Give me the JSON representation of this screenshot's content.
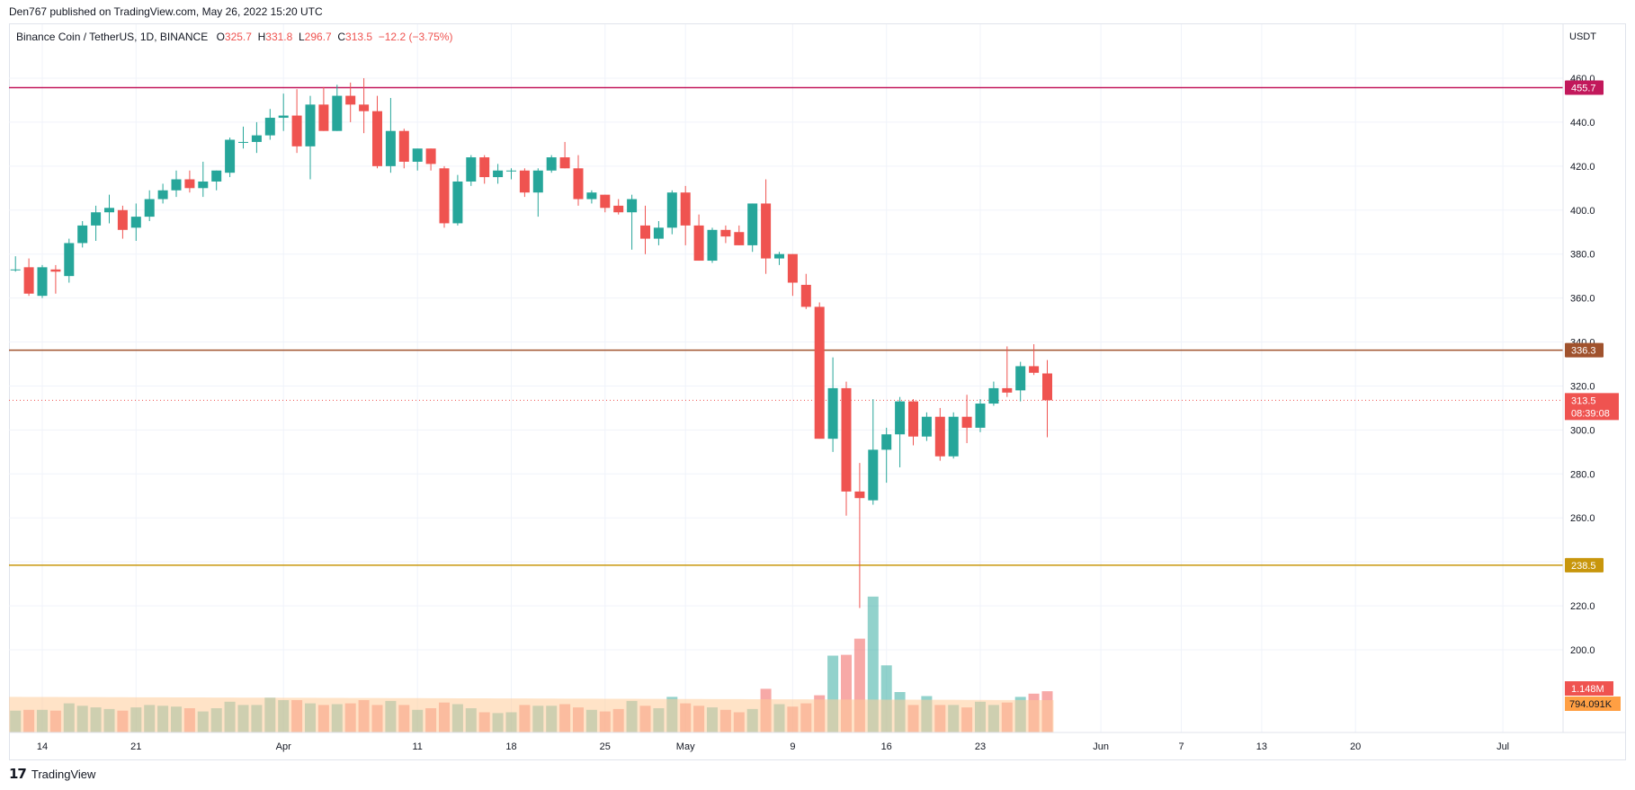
{
  "header": {
    "publisher": "Den767 published on TradingView.com, May 26, 2022 15:20 UTC"
  },
  "legend": {
    "symbol": "Binance Coin / TetherUS, 1D, BINANCE",
    "o_label": "O",
    "o_value": "325.7",
    "h_label": "H",
    "h_value": "331.8",
    "l_label": "L",
    "l_value": "296.7",
    "c_label": "C",
    "c_value": "313.5",
    "change": "−12.2 (−3.75%)"
  },
  "footer": {
    "brand": "TradingView"
  },
  "colors": {
    "up": "#26a69a",
    "down": "#ef5350",
    "resistance_high": "#c2185b",
    "resistance_mid": "#a0522d",
    "support": "#c8960c",
    "volume_ma": "#ffcc99"
  },
  "chart_data": {
    "type": "candlestick",
    "currency_label": "USDT",
    "ylim": [
      180,
      470
    ],
    "y_ticks": [
      200,
      220,
      240,
      260,
      280,
      300,
      320,
      340,
      360,
      380,
      400,
      420,
      440,
      460
    ],
    "y_tick_labels": [
      "200.0",
      "220.0",
      "240.0",
      "260.0",
      "280.0",
      "300.0",
      "320.0",
      "340.0",
      "360.0",
      "380.0",
      "400.0",
      "420.0",
      "440.0",
      "460.0"
    ],
    "x_tick_labels": [
      {
        "label": "14",
        "day": 0
      },
      {
        "label": "21",
        "day": 7
      },
      {
        "label": "Apr",
        "day": 18
      },
      {
        "label": "11",
        "day": 28
      },
      {
        "label": "18",
        "day": 35
      },
      {
        "label": "25",
        "day": 42
      },
      {
        "label": "May",
        "day": 48
      },
      {
        "label": "9",
        "day": 56
      },
      {
        "label": "16",
        "day": 63
      },
      {
        "label": "23",
        "day": 70
      },
      {
        "label": "Jun",
        "day": 79
      },
      {
        "label": "7",
        "day": 85
      },
      {
        "label": "13",
        "day": 91
      },
      {
        "label": "20",
        "day": 98
      },
      {
        "label": "Jul",
        "day": 109
      }
    ],
    "first_day_offset": -2,
    "candles": [
      {
        "o": 373,
        "h": 379,
        "l": 372,
        "c": 373
      },
      {
        "o": 374,
        "h": 378,
        "l": 361,
        "c": 362
      },
      {
        "o": 361,
        "h": 375,
        "l": 360,
        "c": 374
      },
      {
        "o": 373,
        "h": 375,
        "l": 362,
        "c": 372
      },
      {
        "o": 370,
        "h": 387,
        "l": 367,
        "c": 385
      },
      {
        "o": 385,
        "h": 395,
        "l": 383,
        "c": 393
      },
      {
        "o": 393,
        "h": 402,
        "l": 386,
        "c": 399
      },
      {
        "o": 399,
        "h": 407,
        "l": 394,
        "c": 401
      },
      {
        "o": 400,
        "h": 402,
        "l": 387,
        "c": 391
      },
      {
        "o": 392,
        "h": 403,
        "l": 386,
        "c": 397
      },
      {
        "o": 397,
        "h": 409,
        "l": 395,
        "c": 405
      },
      {
        "o": 405,
        "h": 412,
        "l": 403,
        "c": 409
      },
      {
        "o": 409,
        "h": 418,
        "l": 406,
        "c": 414
      },
      {
        "o": 414,
        "h": 418,
        "l": 408,
        "c": 410
      },
      {
        "o": 410,
        "h": 422,
        "l": 406,
        "c": 413
      },
      {
        "o": 413,
        "h": 418,
        "l": 409,
        "c": 418
      },
      {
        "o": 417,
        "h": 433,
        "l": 415,
        "c": 432
      },
      {
        "o": 431,
        "h": 438,
        "l": 428,
        "c": 431
      },
      {
        "o": 431,
        "h": 440,
        "l": 426,
        "c": 434
      },
      {
        "o": 434,
        "h": 446,
        "l": 432,
        "c": 442
      },
      {
        "o": 442,
        "h": 453,
        "l": 436,
        "c": 443
      },
      {
        "o": 443,
        "h": 455,
        "l": 426,
        "c": 429
      },
      {
        "o": 429,
        "h": 452,
        "l": 414,
        "c": 448
      },
      {
        "o": 448,
        "h": 456,
        "l": 436,
        "c": 436
      },
      {
        "o": 436,
        "h": 457,
        "l": 436,
        "c": 452
      },
      {
        "o": 452,
        "h": 458,
        "l": 440,
        "c": 448
      },
      {
        "o": 448,
        "h": 460,
        "l": 435,
        "c": 445
      },
      {
        "o": 445,
        "h": 452,
        "l": 419,
        "c": 420
      },
      {
        "o": 420,
        "h": 451,
        "l": 417,
        "c": 436
      },
      {
        "o": 436,
        "h": 437,
        "l": 419,
        "c": 422
      },
      {
        "o": 422,
        "h": 428,
        "l": 418,
        "c": 428
      },
      {
        "o": 428,
        "h": 428,
        "l": 418,
        "c": 421
      },
      {
        "o": 419,
        "h": 420,
        "l": 392,
        "c": 394
      },
      {
        "o": 394,
        "h": 416,
        "l": 393,
        "c": 413
      },
      {
        "o": 413,
        "h": 425,
        "l": 411,
        "c": 424
      },
      {
        "o": 424,
        "h": 425,
        "l": 412,
        "c": 415
      },
      {
        "o": 415,
        "h": 421,
        "l": 412,
        "c": 418
      },
      {
        "o": 418,
        "h": 419,
        "l": 414,
        "c": 418
      },
      {
        "o": 418,
        "h": 419,
        "l": 406,
        "c": 408
      },
      {
        "o": 408,
        "h": 419,
        "l": 397,
        "c": 418
      },
      {
        "o": 418,
        "h": 425,
        "l": 417,
        "c": 424
      },
      {
        "o": 424,
        "h": 431,
        "l": 419,
        "c": 419
      },
      {
        "o": 419,
        "h": 425,
        "l": 402,
        "c": 405
      },
      {
        "o": 405,
        "h": 409,
        "l": 403,
        "c": 408
      },
      {
        "o": 407,
        "h": 407,
        "l": 399,
        "c": 401
      },
      {
        "o": 402,
        "h": 405,
        "l": 398,
        "c": 399
      },
      {
        "o": 399,
        "h": 407,
        "l": 382,
        "c": 405
      },
      {
        "o": 393,
        "h": 402,
        "l": 380,
        "c": 387
      },
      {
        "o": 387,
        "h": 395,
        "l": 384,
        "c": 392
      },
      {
        "o": 392,
        "h": 409,
        "l": 389,
        "c": 408
      },
      {
        "o": 408,
        "h": 411,
        "l": 384,
        "c": 393
      },
      {
        "o": 393,
        "h": 398,
        "l": 377,
        "c": 377
      },
      {
        "o": 377,
        "h": 392,
        "l": 376,
        "c": 391
      },
      {
        "o": 391,
        "h": 393,
        "l": 385,
        "c": 388
      },
      {
        "o": 390,
        "h": 393,
        "l": 384,
        "c": 384
      },
      {
        "o": 384,
        "h": 403,
        "l": 381,
        "c": 403
      },
      {
        "o": 403,
        "h": 414,
        "l": 371,
        "c": 378
      },
      {
        "o": 378,
        "h": 381,
        "l": 375,
        "c": 380
      },
      {
        "o": 380,
        "h": 380,
        "l": 361,
        "c": 367
      },
      {
        "o": 366,
        "h": 371,
        "l": 355,
        "c": 356
      },
      {
        "o": 356,
        "h": 358,
        "l": 296,
        "c": 296
      },
      {
        "o": 296,
        "h": 333,
        "l": 290,
        "c": 319
      },
      {
        "o": 319,
        "h": 322,
        "l": 261,
        "c": 272
      },
      {
        "o": 272,
        "h": 285,
        "l": 219,
        "c": 269
      },
      {
        "o": 268,
        "h": 314,
        "l": 266,
        "c": 291
      },
      {
        "o": 291,
        "h": 301,
        "l": 276,
        "c": 298
      },
      {
        "o": 298,
        "h": 315,
        "l": 283,
        "c": 313
      },
      {
        "o": 313,
        "h": 314,
        "l": 293,
        "c": 297
      },
      {
        "o": 297,
        "h": 308,
        "l": 295,
        "c": 306
      },
      {
        "o": 306,
        "h": 310,
        "l": 286,
        "c": 288
      },
      {
        "o": 288,
        "h": 308,
        "l": 287,
        "c": 306
      },
      {
        "o": 306,
        "h": 316,
        "l": 294,
        "c": 301
      },
      {
        "o": 301,
        "h": 314,
        "l": 299,
        "c": 312
      },
      {
        "o": 312,
        "h": 322,
        "l": 311,
        "c": 319
      },
      {
        "o": 319,
        "h": 338,
        "l": 315,
        "c": 317
      },
      {
        "o": 318,
        "h": 331,
        "l": 313,
        "c": 329
      },
      {
        "o": 329,
        "h": 339,
        "l": 325,
        "c": 326
      },
      {
        "o": 325.7,
        "h": 331.8,
        "l": 296.7,
        "c": 313.5
      }
    ],
    "volume": [
      27,
      28,
      28,
      27,
      36,
      33,
      31,
      29,
      27,
      31,
      34,
      33,
      32,
      30,
      26,
      30,
      38,
      34,
      34,
      43,
      40,
      40,
      36,
      34,
      35,
      36,
      40,
      34,
      39,
      34,
      28,
      30,
      37,
      35,
      30,
      25,
      24,
      25,
      34,
      33,
      33,
      35,
      31,
      28,
      26,
      29,
      39,
      33,
      30,
      44,
      36,
      33,
      31,
      28,
      25,
      29,
      54,
      35,
      32,
      36,
      46,
      95,
      96,
      116,
      168,
      83,
      50,
      34,
      45,
      34,
      34,
      31,
      38,
      34,
      37,
      44,
      48,
      51
    ],
    "volume_ma_start": 44,
    "volume_ma_end": 40,
    "volume_ma_label": "794.091K",
    "volume_last_label": "1.148M",
    "last_price_label": "313.5",
    "countdown_label": "08:39:08",
    "levels": [
      {
        "price": 455.7,
        "label": "455.7",
        "color": "#c2185b"
      },
      {
        "price": 336.3,
        "label": "336.3",
        "color": "#a0522d"
      },
      {
        "price": 238.5,
        "label": "238.5",
        "color": "#c8960c"
      }
    ]
  }
}
